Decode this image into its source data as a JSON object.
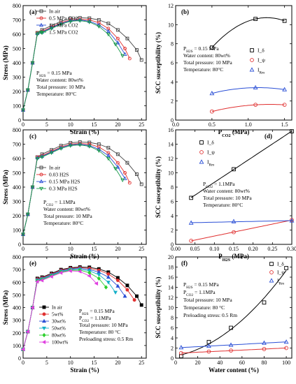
{
  "chart_data": [
    {
      "panel": "(a)",
      "type": "line",
      "xlabel": "Strain (%)",
      "ylabel": "Stress (MPa)",
      "xlim": [
        0,
        26
      ],
      "ylim": [
        0,
        800
      ],
      "xticks": [
        0,
        5,
        10,
        15,
        20,
        25
      ],
      "yticks": [
        0,
        100,
        200,
        300,
        400,
        500,
        600,
        700,
        800
      ],
      "legend": "top-center",
      "annotations": [
        "P_H2S = 0.15 MPa",
        "Water content: 80wt%",
        "Total pressure: 10 MPa",
        "Temperature: 80°C"
      ],
      "series": [
        {
          "name": "In air",
          "marker": "square",
          "color": "#444444",
          "x": [
            0,
            1,
            2,
            3,
            4,
            6,
            8,
            10,
            12,
            14,
            16,
            18,
            20,
            22,
            24,
            25
          ],
          "y": [
            70,
            210,
            400,
            610,
            630,
            660,
            690,
            710,
            715,
            712,
            700,
            675,
            630,
            570,
            490,
            420
          ]
        },
        {
          "name": "0.5 MPa CO2",
          "marker": "circle",
          "color": "#e03030",
          "x": [
            0,
            1,
            2,
            3,
            4,
            6,
            8,
            10,
            12,
            14,
            16,
            18,
            20,
            21.5,
            22.5
          ],
          "y": [
            70,
            210,
            400,
            610,
            620,
            650,
            680,
            700,
            705,
            700,
            680,
            640,
            570,
            500,
            430
          ]
        },
        {
          "name": "1.1 MPa CO2",
          "marker": "triangle",
          "color": "#2a4fd6",
          "x": [
            0,
            1,
            2,
            3,
            4,
            6,
            8,
            10,
            12,
            14,
            16,
            18,
            20,
            21.5
          ],
          "y": [
            70,
            210,
            400,
            605,
            615,
            645,
            675,
            695,
            700,
            690,
            665,
            620,
            540,
            460
          ]
        },
        {
          "name": "1.5 MPa CO2",
          "marker": "triangle-down",
          "color": "#1a9a4a",
          "x": [
            0,
            1,
            2,
            3,
            4,
            6,
            8,
            10,
            12,
            14,
            16,
            18,
            19.5,
            21
          ],
          "y": [
            70,
            210,
            400,
            600,
            610,
            640,
            670,
            690,
            695,
            685,
            655,
            600,
            530,
            450
          ]
        }
      ]
    },
    {
      "panel": "(b)",
      "type": "scatter",
      "xlabel": "P_CO2 (MPa)",
      "ylabel": "SCC susceptibility (%)",
      "xlim": [
        0.0,
        1.6
      ],
      "ylim": [
        0,
        12
      ],
      "xticks": [
        0.0,
        0.5,
        1.0,
        1.5
      ],
      "yticks": [
        0,
        2,
        4,
        6,
        8,
        10,
        12
      ],
      "legend": "right",
      "annotations": [
        "P_H2S = 0.15 MPa",
        "Water content: 80wt%",
        "Total pressure: 10 MPa",
        "Temperature: 80°C"
      ],
      "series": [
        {
          "name": "I_δ",
          "marker": "square",
          "color": "#000000",
          "x": [
            0.5,
            1.1,
            1.5
          ],
          "y": [
            7.6,
            10.6,
            10.4
          ]
        },
        {
          "name": "I_ψ",
          "marker": "circle",
          "color": "#e03030",
          "x": [
            0.5,
            1.1,
            1.5
          ],
          "y": [
            0.9,
            1.6,
            1.6
          ]
        },
        {
          "name": "I_Rm",
          "marker": "triangle",
          "color": "#2a4fd6",
          "x": [
            0.5,
            1.1,
            1.5
          ],
          "y": [
            2.8,
            3.4,
            3.2
          ]
        }
      ]
    },
    {
      "panel": "(c)",
      "type": "line",
      "xlabel": "Strain (%)",
      "ylabel": "Stress (MPa)",
      "xlim": [
        0,
        26
      ],
      "ylim": [
        0,
        800
      ],
      "xticks": [
        0,
        5,
        10,
        15,
        20,
        25
      ],
      "yticks": [
        0,
        100,
        200,
        300,
        400,
        500,
        600,
        700,
        800
      ],
      "legend": "left",
      "annotations": [
        "P_CO2 = 1.1MPa",
        "Water content: 80wt%",
        "Total pressure: 10 MPa",
        "Temperature: 80°C"
      ],
      "series": [
        {
          "name": "In air",
          "marker": "square",
          "color": "#444444",
          "x": [
            0,
            1,
            2,
            3,
            4,
            6,
            8,
            10,
            12,
            14,
            16,
            18,
            20,
            22,
            24,
            25
          ],
          "y": [
            70,
            210,
            400,
            610,
            630,
            660,
            690,
            710,
            715,
            712,
            700,
            675,
            630,
            570,
            490,
            420
          ]
        },
        {
          "name": "0.03 H2S",
          "marker": "circle",
          "color": "#e03030",
          "x": [
            0,
            1,
            2,
            3,
            4,
            6,
            8,
            10,
            12,
            14,
            16,
            18,
            20,
            21.5,
            22.5
          ],
          "y": [
            70,
            210,
            400,
            610,
            620,
            650,
            680,
            700,
            705,
            700,
            680,
            640,
            570,
            500,
            430
          ]
        },
        {
          "name": "0.15 MPa H2S",
          "marker": "triangle",
          "color": "#2a4fd6",
          "x": [
            0,
            1,
            2,
            3,
            4,
            6,
            8,
            10,
            12,
            14,
            16,
            18,
            20,
            21.5
          ],
          "y": [
            70,
            210,
            400,
            605,
            615,
            645,
            675,
            695,
            700,
            690,
            665,
            620,
            540,
            460
          ]
        },
        {
          "name": "0.3 MPa H2S",
          "marker": "triangle-down",
          "color": "#1a9a4a",
          "x": [
            0,
            1,
            2,
            3,
            4,
            6,
            8,
            10,
            12,
            14,
            16,
            18,
            19.5,
            21
          ],
          "y": [
            70,
            210,
            400,
            600,
            610,
            640,
            670,
            690,
            695,
            685,
            655,
            600,
            530,
            450
          ]
        }
      ]
    },
    {
      "panel": "(d)",
      "type": "scatter",
      "xlabel": "P_H2S (MPa)",
      "ylabel": "SCC susceptibility (%)",
      "xlim": [
        0.0,
        0.3
      ],
      "ylim": [
        0,
        16
      ],
      "xticks": [
        0.0,
        0.05,
        0.1,
        0.15,
        0.2,
        0.25,
        0.3
      ],
      "yticks": [
        0,
        2,
        4,
        6,
        8,
        10,
        12,
        14,
        16
      ],
      "legend": "top-left",
      "annotations": [
        "P_CO2 = 1.1MPa",
        "Water content: 80wt%",
        "Total pressure: 10 MPa",
        "Temperature: 80°C"
      ],
      "series": [
        {
          "name": "I_δ",
          "marker": "square",
          "color": "#000000",
          "x": [
            0.04,
            0.15,
            0.3
          ],
          "y": [
            6.5,
            10.5,
            15.8
          ]
        },
        {
          "name": "I_ψ",
          "marker": "circle",
          "color": "#e03030",
          "x": [
            0.04,
            0.15,
            0.3
          ],
          "y": [
            0.5,
            1.7,
            3.4
          ]
        },
        {
          "name": "I_Rm",
          "marker": "triangle",
          "color": "#2a4fd6",
          "x": [
            0.04,
            0.15,
            0.3
          ],
          "y": [
            3.0,
            3.2,
            3.3
          ]
        }
      ]
    },
    {
      "panel": "(e)",
      "type": "line",
      "xlabel": "Strain (%)",
      "ylabel": "Stress (MPa)",
      "xlim": [
        0,
        26
      ],
      "ylim": [
        0,
        800
      ],
      "xticks": [
        0,
        5,
        10,
        15,
        20,
        25
      ],
      "yticks": [
        0,
        100,
        200,
        300,
        400,
        500,
        600,
        700,
        800
      ],
      "legend": "bottom-left",
      "annotations": [
        "P_H2S = 0.15 MPa",
        "P_CO2 = 1.1MPa",
        "Total pressure: 10 MPa",
        "Temperature: 80 °C",
        "Preloading stress: 0.5 Rm"
      ],
      "series": [
        {
          "name": "In air",
          "marker": "square",
          "color": "#000000",
          "x": [
            0,
            1,
            2,
            3,
            4,
            6,
            8,
            10,
            12,
            14,
            16,
            18,
            20,
            22,
            24,
            25
          ],
          "y": [
            70,
            210,
            400,
            630,
            640,
            670,
            700,
            715,
            720,
            718,
            705,
            680,
            635,
            575,
            490,
            420
          ]
        },
        {
          "name": "5wt%",
          "marker": "circle",
          "color": "#e03030",
          "x": [
            0,
            1,
            2,
            3,
            4,
            6,
            8,
            10,
            12,
            14,
            16,
            18,
            20,
            22,
            23.5
          ],
          "y": [
            70,
            210,
            400,
            625,
            635,
            665,
            695,
            710,
            715,
            710,
            695,
            665,
            615,
            540,
            460
          ]
        },
        {
          "name": "30wt%",
          "marker": "triangle",
          "color": "#2a4fd6",
          "x": [
            0,
            1,
            2,
            3,
            4,
            6,
            8,
            10,
            12,
            14,
            16,
            18,
            20,
            21.5
          ],
          "y": [
            70,
            210,
            400,
            620,
            630,
            660,
            690,
            705,
            710,
            700,
            680,
            640,
            570,
            490
          ]
        },
        {
          "name": "50wt%",
          "marker": "triangle-down",
          "color": "#14b0c8",
          "x": [
            0,
            1,
            2,
            3,
            4,
            6,
            8,
            10,
            12,
            14,
            16,
            18,
            19.5
          ],
          "y": [
            70,
            210,
            400,
            615,
            625,
            655,
            685,
            700,
            702,
            690,
            660,
            600,
            520
          ]
        },
        {
          "name": "80wt%",
          "marker": "diamond",
          "color": "#2ccf2c",
          "x": [
            0,
            1,
            2,
            3,
            4,
            6,
            8,
            10,
            12,
            14,
            16,
            17.5
          ],
          "y": [
            70,
            210,
            400,
            610,
            620,
            650,
            680,
            695,
            695,
            675,
            630,
            560
          ]
        },
        {
          "name": "100wt%",
          "marker": "triangle-left",
          "color": "#e040e0",
          "x": [
            0,
            1,
            2,
            3,
            4,
            6,
            8,
            10,
            12,
            14,
            15.5
          ],
          "y": [
            70,
            210,
            400,
            605,
            615,
            645,
            675,
            690,
            685,
            650,
            590
          ]
        }
      ]
    },
    {
      "panel": "(f)",
      "type": "scatter",
      "xlabel": "Water content (%)",
      "ylabel": "SCC susceptibility (%)",
      "xlim": [
        0,
        105
      ],
      "ylim": [
        0,
        20
      ],
      "xticks": [
        0,
        20,
        40,
        60,
        80,
        100
      ],
      "yticks": [
        0,
        2,
        4,
        6,
        8,
        10,
        12,
        14,
        16,
        18,
        20
      ],
      "legend": "top-right",
      "annotations": [
        "P_H2S = 0.15 MPa",
        "P_CO2 = 1.1MPa",
        "Total pressure: 10 MPa",
        "Temperature: 80 °C",
        "Preloading stress: 0.5 Rm"
      ],
      "series": [
        {
          "name": "I_δ",
          "marker": "square",
          "color": "#000000",
          "x": [
            5,
            30,
            50,
            80,
            100
          ],
          "y": [
            0.4,
            3.2,
            6.0,
            11.0,
            17.8
          ]
        },
        {
          "name": "I_ψ",
          "marker": "circle",
          "color": "#e03030",
          "x": [
            5,
            30,
            50,
            80,
            100
          ],
          "y": [
            1.0,
            1.3,
            1.5,
            1.8,
            2.0
          ]
        },
        {
          "name": "I_Rm",
          "marker": "triangle",
          "color": "#2a4fd6",
          "x": [
            5,
            30,
            50,
            80,
            100
          ],
          "y": [
            2.1,
            2.4,
            2.6,
            3.0,
            3.2
          ]
        }
      ]
    }
  ]
}
